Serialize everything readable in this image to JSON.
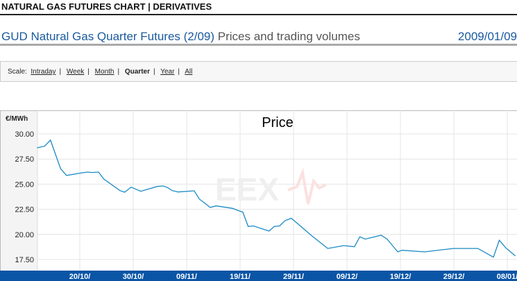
{
  "header": {
    "title": "NATURAL GAS FUTURES CHART | DERIVATIVES"
  },
  "heading": {
    "product": "GUD Natural Gas Quarter Futures (2/09)",
    "suffix": " Prices and trading volumes",
    "date": "2009/01/09"
  },
  "scale": {
    "label": "Scale:",
    "options": [
      "Intraday",
      "Week",
      "Month",
      "Quarter",
      "Year",
      "All"
    ],
    "selected": "Quarter"
  },
  "chart_data": {
    "type": "line",
    "title": "Price",
    "ylabel": "€/MWh",
    "xlabel": "",
    "ylim": [
      16.5,
      32.3
    ],
    "yticks": [
      "30.00",
      "27.50",
      "25.00",
      "22.50",
      "20.00",
      "17.50"
    ],
    "xunit": "days since 20/10/2008",
    "xticks": [
      {
        "day": 0,
        "label": "20/10/"
      },
      {
        "day": 10,
        "label": "30/10/"
      },
      {
        "day": 20,
        "label": "09/11/"
      },
      {
        "day": 30,
        "label": "19/11/"
      },
      {
        "day": 40,
        "label": "29/11/"
      },
      {
        "day": 50,
        "label": "09/12/"
      },
      {
        "day": 60,
        "label": "19/12/"
      },
      {
        "day": 70,
        "label": "29/12/"
      },
      {
        "day": 80,
        "label": "08/01/"
      }
    ],
    "series": [
      {
        "name": "Price",
        "color": "#1a8ac6",
        "points": [
          [
            -8,
            28.62
          ],
          [
            -6.6,
            28.78
          ],
          [
            -5.5,
            29.38
          ],
          [
            -3.6,
            26.55
          ],
          [
            -2.5,
            25.86
          ],
          [
            0,
            26.09
          ],
          [
            1.4,
            26.2
          ],
          [
            2.3,
            26.16
          ],
          [
            3.5,
            26.2
          ],
          [
            4.5,
            25.5
          ],
          [
            7.5,
            24.36
          ],
          [
            8.4,
            24.2
          ],
          [
            9.6,
            24.7
          ],
          [
            11.4,
            24.29
          ],
          [
            14.5,
            24.77
          ],
          [
            15.6,
            24.82
          ],
          [
            16.4,
            24.66
          ],
          [
            17.3,
            24.36
          ],
          [
            18.4,
            24.22
          ],
          [
            21.4,
            24.34
          ],
          [
            22.4,
            23.5
          ],
          [
            23.4,
            23.1
          ],
          [
            24.4,
            22.68
          ],
          [
            25.5,
            22.84
          ],
          [
            28.6,
            22.59
          ],
          [
            29.7,
            22.36
          ],
          [
            30.5,
            22.22
          ],
          [
            31.5,
            20.79
          ],
          [
            32.5,
            20.84
          ],
          [
            35.4,
            20.33
          ],
          [
            36.4,
            20.79
          ],
          [
            37.4,
            20.84
          ],
          [
            38.4,
            21.37
          ],
          [
            39.6,
            21.6
          ],
          [
            43.4,
            19.87
          ],
          [
            46.4,
            18.6
          ],
          [
            49.4,
            18.88
          ],
          [
            51.4,
            18.77
          ],
          [
            52.4,
            19.76
          ],
          [
            53.4,
            19.53
          ],
          [
            56.4,
            19.92
          ],
          [
            57.5,
            19.53
          ],
          [
            59.5,
            18.26
          ],
          [
            60.3,
            18.42
          ],
          [
            64.5,
            18.26
          ],
          [
            69.9,
            18.6
          ],
          [
            74.5,
            18.6
          ],
          [
            77.4,
            17.73
          ],
          [
            78.5,
            19.41
          ],
          [
            79.7,
            18.67
          ],
          [
            81.5,
            17.85
          ]
        ]
      }
    ],
    "grid": true,
    "watermark": "EEX"
  }
}
